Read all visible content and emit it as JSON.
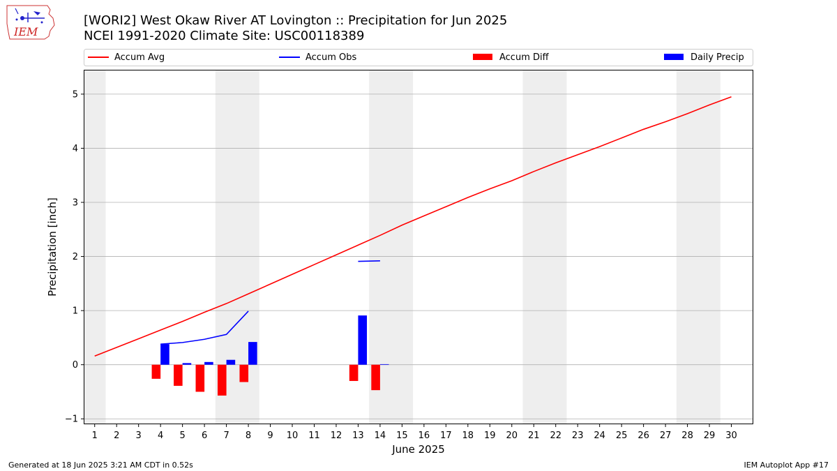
{
  "logo": {
    "text": "IEM"
  },
  "chart_data": {
    "type": "bar+line",
    "title": "[WORI2] West Okaw River  AT Lovington :: Precipitation for Jun 2025",
    "subtitle": "NCEI 1991-2020 Climate Site: USC00118389",
    "xlabel": "June 2025",
    "ylabel": "Precipitation [inch]",
    "xlim": [
      0.5,
      31.0
    ],
    "ylim": [
      -1.1,
      5.45
    ],
    "xticks": [
      1,
      2,
      3,
      4,
      5,
      6,
      7,
      8,
      9,
      10,
      11,
      12,
      13,
      14,
      15,
      16,
      17,
      18,
      19,
      20,
      21,
      22,
      23,
      24,
      25,
      26,
      27,
      28,
      29,
      30
    ],
    "yticks": [
      -1,
      0,
      1,
      2,
      3,
      4,
      5
    ],
    "grid": "horizontal",
    "weekend_shading": [
      [
        0.5,
        1.5
      ],
      [
        6.5,
        8.5
      ],
      [
        13.5,
        15.5
      ],
      [
        20.5,
        22.5
      ],
      [
        27.5,
        29.5
      ]
    ],
    "legend": {
      "placement": "top",
      "entries": [
        {
          "label": "Accum Avg",
          "kind": "line",
          "color": "#ff0000"
        },
        {
          "label": "Accum Obs",
          "kind": "line",
          "color": "#0000ff"
        },
        {
          "label": "Accum Diff",
          "kind": "bar",
          "color": "#ff0000"
        },
        {
          "label": "Daily Precip",
          "kind": "bar",
          "color": "#0000ff"
        }
      ]
    },
    "series": [
      {
        "name": "Accum Avg",
        "kind": "line",
        "color": "#ff0000",
        "x": [
          1,
          2,
          3,
          4,
          5,
          6,
          7,
          8,
          9,
          10,
          11,
          12,
          13,
          14,
          15,
          16,
          17,
          18,
          19,
          20,
          21,
          22,
          23,
          24,
          25,
          26,
          27,
          28,
          29,
          30
        ],
        "values": [
          0.16,
          0.32,
          0.48,
          0.64,
          0.8,
          0.97,
          1.13,
          1.31,
          1.49,
          1.67,
          1.85,
          2.03,
          2.21,
          2.39,
          2.58,
          2.75,
          2.92,
          3.09,
          3.25,
          3.4,
          3.57,
          3.73,
          3.88,
          4.03,
          4.19,
          4.35,
          4.49,
          4.64,
          4.8,
          4.95
        ]
      },
      {
        "name": "Accum Obs",
        "kind": "line",
        "color": "#0000ff",
        "segments": [
          {
            "x": [
              4,
              5,
              6,
              7,
              8
            ],
            "values": [
              0.38,
              0.41,
              0.47,
              0.56,
              0.99
            ]
          },
          {
            "x": [
              13,
              14
            ],
            "values": [
              1.91,
              1.92
            ]
          }
        ]
      },
      {
        "name": "Accum Diff",
        "kind": "bar",
        "color": "#ff0000",
        "x": [
          4,
          5,
          6,
          7,
          8,
          13,
          14
        ],
        "values": [
          -0.26,
          -0.39,
          -0.5,
          -0.57,
          -0.32,
          -0.3,
          -0.47
        ]
      },
      {
        "name": "Daily Precip",
        "kind": "bar",
        "color": "#0000ff",
        "x": [
          4,
          5,
          6,
          7,
          8,
          13,
          14
        ],
        "values": [
          0.38,
          0.03,
          0.05,
          0.09,
          0.42,
          0.91,
          0.01
        ]
      }
    ]
  },
  "footer": {
    "generated": "Generated at 18 Jun 2025 3:21 AM CDT in 0.52s",
    "app": "IEM Autoplot App #17"
  }
}
